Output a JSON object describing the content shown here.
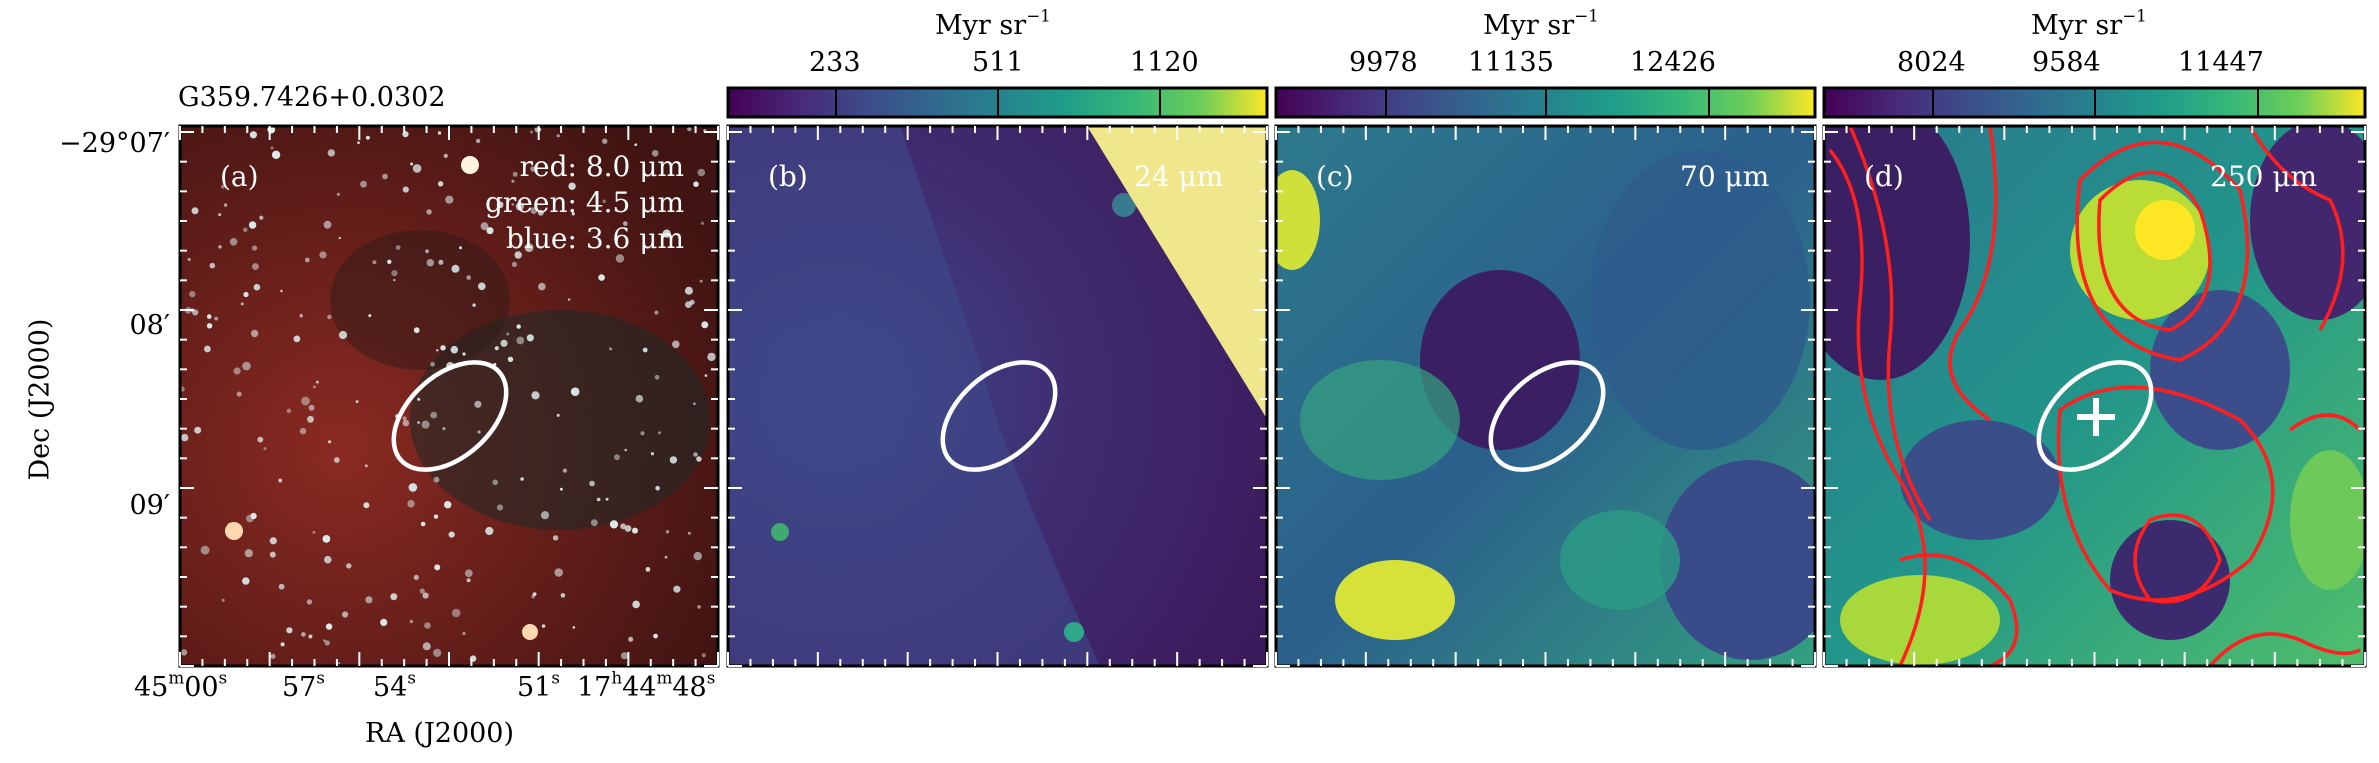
{
  "figure": {
    "source_title": "G359.7426+0.0302",
    "y_axis_label": "Dec (J2000)",
    "x_axis_label": "RA (J2000)",
    "dec_ticks": [
      "−29°07′",
      "08′",
      "09′"
    ],
    "ra_ticks": [
      {
        "main": "45",
        "sup": "m",
        "main2": "00",
        "sup2": "s"
      },
      {
        "main": "57",
        "sup": "s",
        "main2": "",
        "sup2": ""
      },
      {
        "main": "54",
        "sup": "s",
        "main2": "",
        "sup2": ""
      },
      {
        "main": "51",
        "sup": "s",
        "main2": "",
        "sup2": ""
      },
      {
        "main": "17",
        "sup": "h",
        "main2": "44",
        "sup2": "m",
        "main3": "48",
        "sup3": "s"
      }
    ]
  },
  "panels": [
    {
      "id": "a",
      "label": "(a)",
      "legend": [
        "red: 8.0 μm",
        "green: 4.5 μm",
        "blue: 3.6 μm"
      ],
      "colors": {
        "background": "#5a1c16",
        "overlay": "#ffffff"
      }
    },
    {
      "id": "b",
      "label": "(b)",
      "wavelength": "24 μm",
      "colorbar": {
        "unit": "Myr sr",
        "unit_exp": "−1",
        "ticks": [
          "233",
          "511",
          "1120"
        ]
      },
      "colors": {
        "background": "#45357e",
        "saturated": "#f0e68c"
      }
    },
    {
      "id": "c",
      "label": "(c)",
      "wavelength": "70 μm",
      "colorbar": {
        "unit": "Myr sr",
        "unit_exp": "−1",
        "ticks": [
          "9978",
          "11135",
          "12426"
        ]
      },
      "colors": {
        "background": "#3a6b8c"
      }
    },
    {
      "id": "d",
      "label": "(d)",
      "wavelength": "250 μm",
      "colorbar": {
        "unit": "Myr sr",
        "unit_exp": "−1",
        "ticks": [
          "8024",
          "9584",
          "11447"
        ]
      },
      "colors": {
        "background": "#2a8a86",
        "contours": "#ff1f1f",
        "marker": "#ffffff"
      }
    }
  ],
  "colormap": "viridis"
}
